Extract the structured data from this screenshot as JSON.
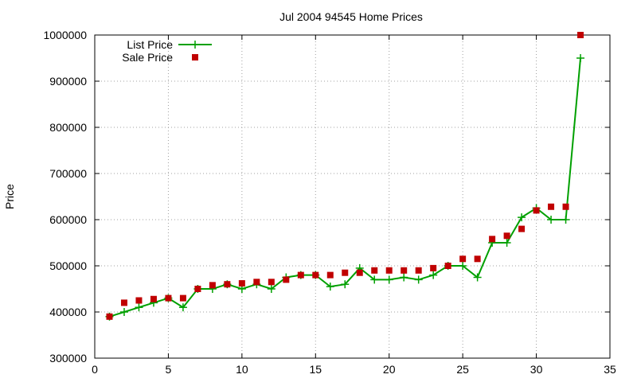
{
  "chart_data": {
    "type": "scatter",
    "title": "Jul 2004 94545 Home Prices",
    "xlabel": "",
    "ylabel": "Price",
    "xlim": [
      0,
      35
    ],
    "ylim": [
      300000,
      1000000
    ],
    "x_ticks": [
      0,
      5,
      10,
      15,
      20,
      25,
      30,
      35
    ],
    "y_ticks": [
      300000,
      400000,
      500000,
      600000,
      700000,
      800000,
      900000,
      1000000
    ],
    "grid": true,
    "legend_position": "top-left",
    "series": [
      {
        "name": "List Price",
        "type": "linespoints",
        "marker": "plus",
        "color": "#00a000",
        "x": [
          1,
          2,
          3,
          4,
          5,
          6,
          7,
          8,
          9,
          10,
          11,
          12,
          13,
          14,
          15,
          16,
          17,
          18,
          19,
          20,
          21,
          22,
          23,
          24,
          25,
          26,
          27,
          28,
          29,
          30,
          31,
          32,
          33
        ],
        "y": [
          390000,
          400000,
          410000,
          420000,
          430000,
          410000,
          450000,
          450000,
          460000,
          450000,
          460000,
          450000,
          475000,
          480000,
          480000,
          455000,
          460000,
          495000,
          470000,
          470000,
          475000,
          470000,
          480000,
          500000,
          500000,
          475000,
          550000,
          550000,
          605000,
          625000,
          600000,
          600000,
          950000
        ]
      },
      {
        "name": "Sale Price",
        "type": "points",
        "marker": "square",
        "color": "#c00000",
        "x": [
          1,
          2,
          3,
          4,
          5,
          6,
          7,
          8,
          9,
          10,
          11,
          12,
          13,
          14,
          15,
          16,
          17,
          18,
          19,
          20,
          21,
          22,
          23,
          24,
          25,
          26,
          27,
          28,
          29,
          30,
          31,
          32,
          33
        ],
        "y": [
          390000,
          420000,
          425000,
          428000,
          430000,
          430000,
          450000,
          458000,
          460000,
          462000,
          465000,
          465000,
          470000,
          480000,
          480000,
          480000,
          485000,
          485000,
          490000,
          490000,
          490000,
          490000,
          495000,
          500000,
          515000,
          515000,
          558000,
          565000,
          580000,
          620000,
          628000,
          628000,
          1000000
        ]
      }
    ]
  }
}
